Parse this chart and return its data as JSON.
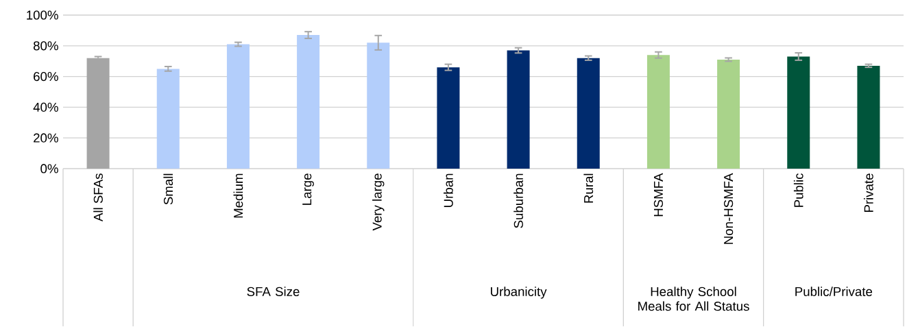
{
  "chart_data": {
    "type": "bar",
    "categories": [
      "All SFAs",
      "Small",
      "Medium",
      "Large",
      "Very large",
      "Urban",
      "Suburban",
      "Rural",
      "HSMFA",
      "Non-HSMFA",
      "Public",
      "Private"
    ],
    "values": [
      72,
      65,
      81,
      87,
      82,
      66,
      77,
      72,
      74,
      71,
      73,
      67
    ],
    "errors": [
      1,
      1.5,
      1.3,
      2.2,
      4.7,
      2,
      1.7,
      1.4,
      2,
      1.1,
      2.4,
      1
    ],
    "colors": [
      "#a5a5a5",
      "#b3cefb",
      "#b3cefb",
      "#b3cefb",
      "#b3cefb",
      "#002b6e",
      "#002b6e",
      "#002b6e",
      "#a9d38a",
      "#a9d38a",
      "#00553b",
      "#00553b"
    ],
    "annotations": [
      "SFA Size",
      "Urbanicity",
      "Healthy School Meals for All Status",
      "Public/Private"
    ],
    "ylim": [
      0,
      100
    ],
    "yticks": [
      {
        "value": 0,
        "label": "0%"
      },
      {
        "value": 20,
        "label": "20%"
      },
      {
        "value": 40,
        "label": "40%"
      },
      {
        "value": 60,
        "label": "60%"
      },
      {
        "value": 80,
        "label": "80%"
      },
      {
        "value": 100,
        "label": "100%"
      }
    ],
    "grid": "y"
  }
}
